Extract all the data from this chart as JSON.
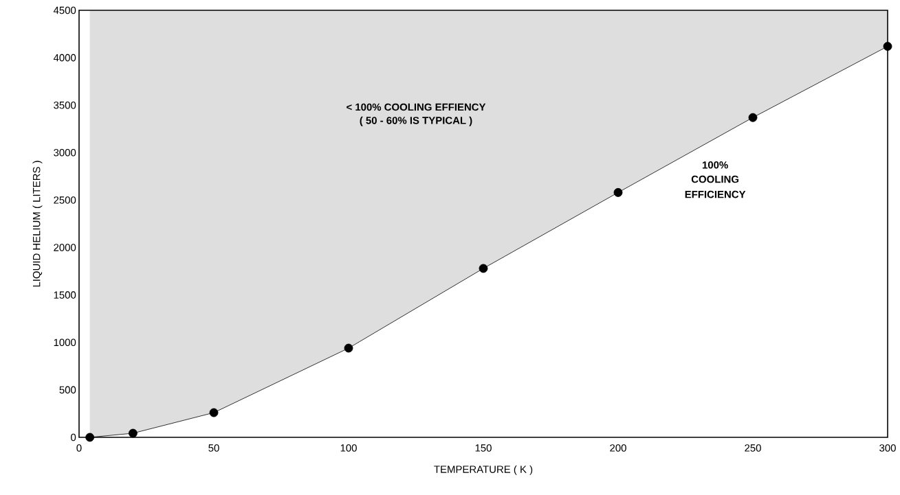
{
  "chart_data": {
    "type": "line",
    "xlabel": "TEMPERATURE ( K )",
    "ylabel": "LIQUID HELIUM ( LITERS )",
    "x": [
      4,
      20,
      50,
      100,
      150,
      200,
      250,
      300
    ],
    "series": [
      {
        "color": "#000000",
        "values": [
          0,
          43,
          260,
          940,
          1780,
          2580,
          3370,
          4120
        ],
        "lower": [
          0,
          43,
          260,
          940,
          1780,
          2580,
          3370,
          4120
        ],
        "upper": [
          4500,
          4500,
          4500,
          4500,
          4500,
          4500,
          4500,
          4500
        ]
      }
    ],
    "xlim": [
      0,
      300
    ],
    "ylim": [
      0,
      4500
    ],
    "xticks": [
      0,
      50,
      100,
      150,
      200,
      250,
      300
    ],
    "yticks": [
      0,
      500,
      1000,
      1500,
      2000,
      2500,
      3000,
      3500,
      4000,
      4500
    ],
    "marker": "circle",
    "line_style": "solid",
    "grid": false,
    "annotations": [
      "< 100% COOLING EFFIENCY",
      "( 50 - 60% IS TYPICAL )",
      "100%",
      "COOLING",
      "EFFICIENCY"
    ]
  }
}
